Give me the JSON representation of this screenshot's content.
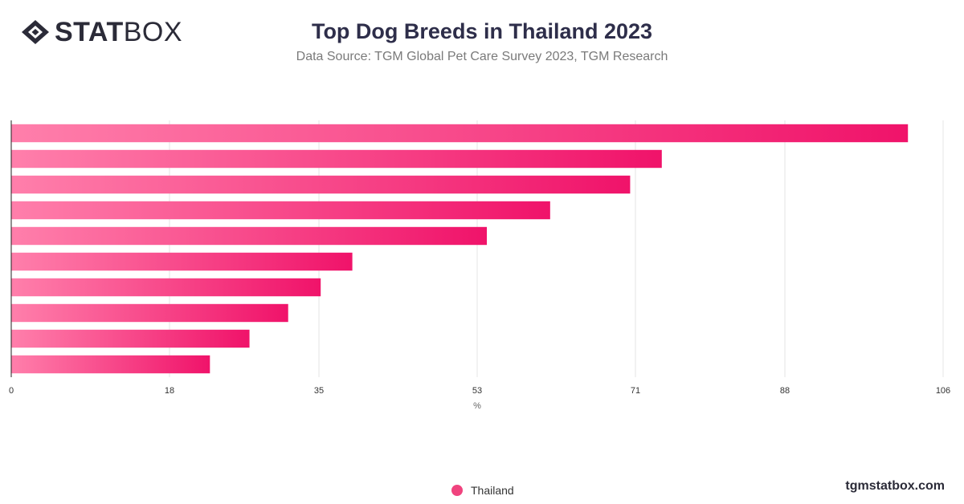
{
  "header": {
    "logo_bold": "STAT",
    "logo_thin": "BOX",
    "title": "Top Dog Breeds in Thailand 2023",
    "subtitle": "Data Source: TGM Global Pet Care Survey 2023, TGM Research"
  },
  "footer": {
    "site": "tgmstatbox.com"
  },
  "colors": {
    "bar_start": "#ff7fab",
    "bar_end": "#f0136a",
    "grid": "#e4e4e4",
    "axis": "#222222",
    "text": "#333333"
  },
  "chart_data": {
    "type": "bar",
    "orientation": "horizontal",
    "categories": [
      "",
      "",
      "",
      "",
      "",
      "",
      "",
      "",
      "",
      ""
    ],
    "series": [
      {
        "name": "Thailand",
        "values": [
          102,
          74,
          70.4,
          61.3,
          54.1,
          38.8,
          35.2,
          31.5,
          27.1,
          22.6
        ]
      }
    ],
    "xlabel": "%",
    "ylabel": "",
    "xlim": [
      0,
      106
    ],
    "xticks": [
      0,
      18,
      35,
      53,
      71,
      88,
      106
    ],
    "grid": true,
    "legend": "bottom-center"
  }
}
